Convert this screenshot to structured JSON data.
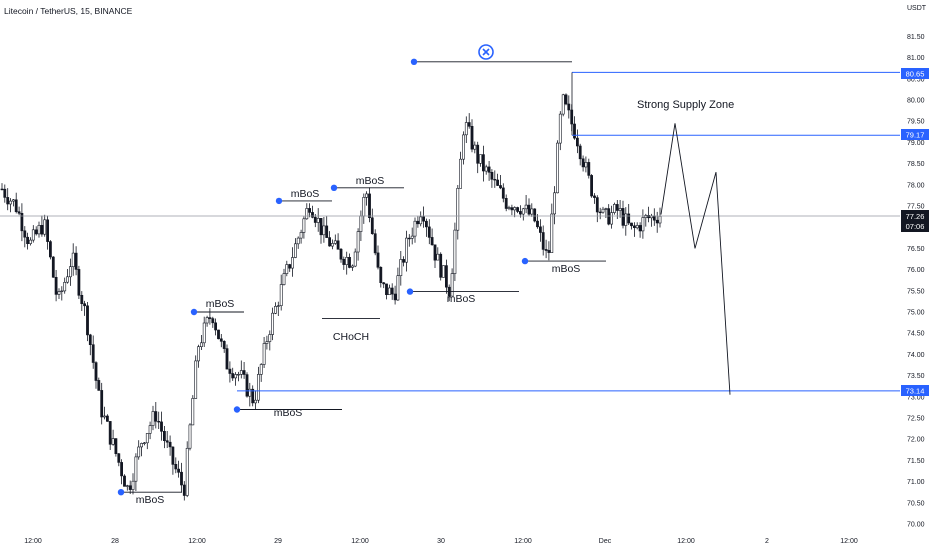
{
  "header": {
    "symbol_line": "Litecoin / TetherUS, 15, BINANCE"
  },
  "axis": {
    "currency": "USDT",
    "y_ticks": [
      "81.50",
      "81.00",
      "80.50",
      "80.00",
      "79.50",
      "79.00",
      "78.50",
      "78.00",
      "77.50",
      "77.00",
      "76.50",
      "76.00",
      "75.50",
      "75.00",
      "74.50",
      "74.00",
      "73.50",
      "73.00",
      "72.50",
      "72.00",
      "71.50",
      "71.00",
      "70.50",
      "70.00"
    ],
    "x_ticks": [
      "12:00",
      "28",
      "12:00",
      "29",
      "12:00",
      "30",
      "12:00",
      "Dec",
      "12:00",
      "2",
      "12:00"
    ]
  },
  "price_labels": {
    "level_high": "80.65",
    "level_mid": "79.17",
    "current_price": "77.26",
    "countdown": "07:06",
    "level_low": "73.14"
  },
  "annotations": {
    "supply_zone": "Strong Supply Zone",
    "mbos_label": "mBoS",
    "choch_label": "CHoCH",
    "invalidation_icon": "x-circle-icon"
  },
  "colors": {
    "up_candle": "#ffffff",
    "down_candle": "#131722",
    "level_line": "#2962ff",
    "marker": "#2962ff",
    "current_price_line": "#9598a1",
    "axis_text": "#131722"
  },
  "chart_data": {
    "type": "candlestick",
    "title": "Litecoin / TetherUS, 15, BINANCE",
    "ylim": [
      69.9,
      81.7
    ],
    "x_tick_labels": [
      "12:00",
      "28",
      "12:00",
      "29",
      "12:00",
      "30",
      "12:00",
      "Dec",
      "12:00",
      "2",
      "12:00"
    ],
    "levels": [
      {
        "label": "80.65",
        "value": 80.65
      },
      {
        "label": "79.17",
        "value": 79.17
      },
      {
        "label": "73.14",
        "value": 73.14
      }
    ],
    "current_price": 77.26,
    "close_path": [
      77.9,
      77.5,
      76.6,
      77.1,
      75.2,
      76.3,
      74.9,
      72.8,
      71.8,
      70.8,
      72.0,
      72.6,
      71.6,
      70.8,
      74.2,
      75.0,
      73.8,
      73.5,
      72.9,
      74.5,
      75.6,
      76.6,
      77.6,
      76.8,
      76.4,
      76.2,
      77.9,
      75.6,
      75.4,
      76.7,
      77.5,
      76.3,
      75.5,
      79.5,
      78.6,
      78.1,
      77.6,
      77.5,
      77.2,
      76.2,
      80.0,
      79.2,
      78.0,
      77.2,
      77.4,
      76.9,
      77.2,
      77.3
    ],
    "projection": [
      77.3,
      79.45,
      76.5,
      78.3,
      73.05
    ],
    "markers": [
      {
        "label": "mBoS",
        "value": 70.75
      },
      {
        "label": "mBoS",
        "value": 75.0
      },
      {
        "label": "mBoS",
        "value": 72.7
      },
      {
        "label": "mBoS",
        "value": 77.62
      },
      {
        "label": "mBoS",
        "value": 77.93
      },
      {
        "label": "CHoCH",
        "value": 74.85
      },
      {
        "label": "mBoS",
        "value": 75.48
      },
      {
        "label": "mBoS",
        "value": 76.2
      }
    ]
  }
}
